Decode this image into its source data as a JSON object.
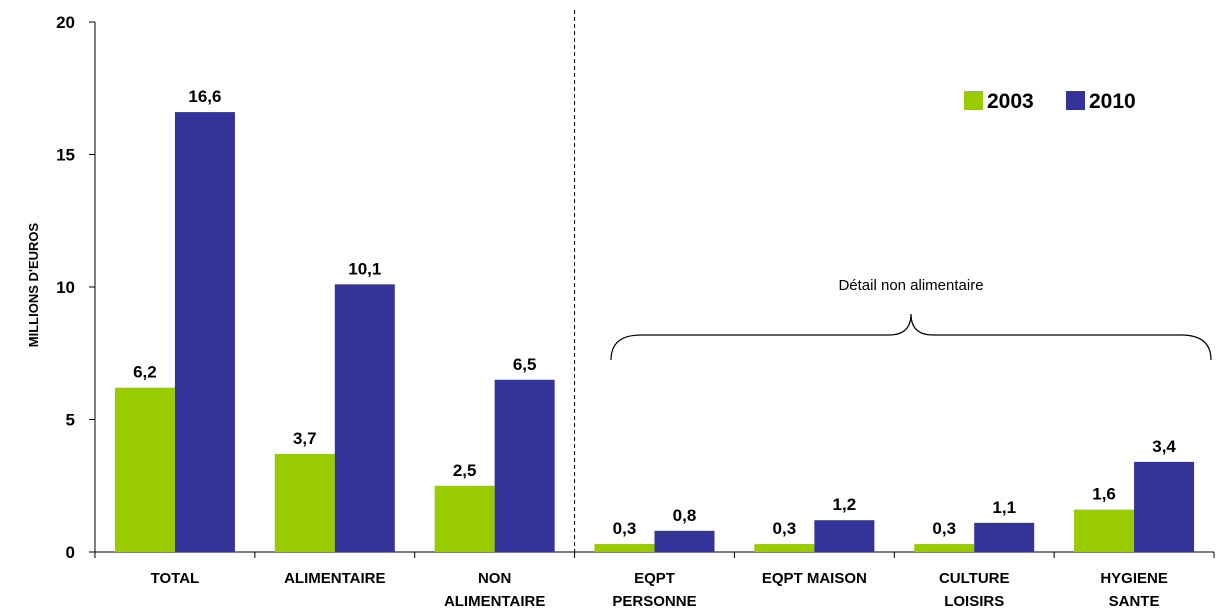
{
  "chart_data": {
    "type": "bar",
    "title": "",
    "xlabel": "",
    "ylabel": "MILLIONS D'EUROS",
    "ylim": [
      0,
      20
    ],
    "yticks": [
      "0",
      "5",
      "10",
      "15",
      "20"
    ],
    "categories": [
      [
        "TOTAL"
      ],
      [
        "ALIMENTAIRE"
      ],
      [
        "NON",
        "ALIMENTAIRE"
      ],
      [
        "EQPT",
        "PERSONNE"
      ],
      [
        "EQPT MAISON"
      ],
      [
        "CULTURE",
        "LOISIRS"
      ],
      [
        "HYGIENE",
        "SANTE"
      ]
    ],
    "series": [
      {
        "name": "2003",
        "color": "#99cc00",
        "values": [
          6.2,
          3.7,
          2.5,
          0.3,
          0.3,
          0.3,
          1.6
        ],
        "labels": [
          "6,2",
          "3,7",
          "2,5",
          "0,3",
          "0,3",
          "0,3",
          "1,6"
        ]
      },
      {
        "name": "2010",
        "color": "#333399",
        "values": [
          16.6,
          10.1,
          6.5,
          0.8,
          1.2,
          1.1,
          3.4
        ],
        "labels": [
          "16,6",
          "10,1",
          "6,5",
          "0,8",
          "1,2",
          "1,1",
          "3,4"
        ]
      }
    ],
    "legend_position": "top-right",
    "grid": false,
    "annotation": "Détail non alimentaire",
    "separator_after_category": 3
  }
}
